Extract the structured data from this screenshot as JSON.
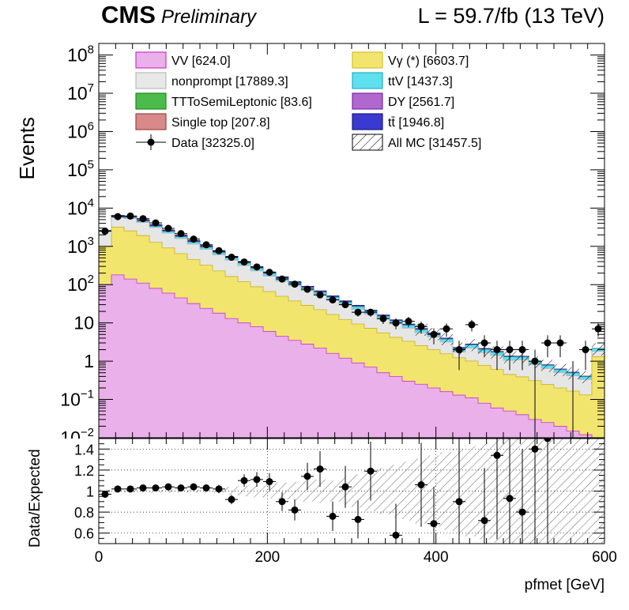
{
  "header": {
    "cms_label": "CMS",
    "prelim_label": "Preliminary",
    "lumi_label": "L = 59.7/fb (13 TeV)"
  },
  "legend": {
    "placement": "top",
    "entries": [
      {
        "key": "vv",
        "label": "VV [624.0]",
        "color": "#e9b0e9",
        "edge": "#cc33cc"
      },
      {
        "key": "vgamma",
        "label": "Vγ (*) [6603.7]",
        "color": "#f2e56e",
        "edge": "#d4c22a"
      },
      {
        "key": "nonprompt",
        "label": "nonprompt [17889.3]",
        "color": "#e8e8e8",
        "edge": "#bbbbbb"
      },
      {
        "key": "ttv",
        "label": "ttV [1437.3]",
        "color": "#5fe0ee",
        "edge": "#22b0c0"
      },
      {
        "key": "ttsemi",
        "label": "TTToSemiLeptonic [83.6]",
        "color": "#4cbb4c",
        "edge": "#1f8a1f"
      },
      {
        "key": "dy",
        "label": "DY [2561.7]",
        "color": "#b068d0",
        "edge": "#7a2aa0"
      },
      {
        "key": "singletop",
        "label": "Single top [207.8]",
        "color": "#d88a8a",
        "edge": "#a04040"
      },
      {
        "key": "tt",
        "label": "tt̄ [1946.8]",
        "color": "#3a3ad0",
        "edge": "#1a1a80"
      },
      {
        "key": "data",
        "label": "Data [32325.0]",
        "color": "#000000",
        "edge": "#000000"
      },
      {
        "key": "allmc",
        "label": "All MC [31457.5]",
        "color": "#ffffff",
        "edge": "#000000"
      }
    ]
  },
  "chart_data": [
    {
      "type": "area",
      "title": "",
      "ylabel": "Events",
      "xlabel": "",
      "y_scale": "log",
      "ylim": [
        0.01,
        200000000
      ],
      "xlim": [
        0,
        600
      ],
      "y_tick_labels": [
        "10^-1",
        "1",
        "10",
        "10^2",
        "10^3",
        "10^4",
        "10^5",
        "10^6",
        "10^7",
        "10^8"
      ],
      "bin_edges_step": 15,
      "stacked_series": [
        {
          "name": "VV",
          "values": [
            100,
            180,
            140,
            110,
            80,
            60,
            45,
            32,
            24,
            18,
            13,
            10,
            8,
            6,
            4.5,
            3.5,
            2.8,
            2.2,
            1.6,
            1.2,
            0.9,
            0.7,
            0.5,
            0.4,
            0.3,
            0.25,
            0.2,
            0.16,
            0.13,
            0.11,
            0.08,
            0.06,
            0.05,
            0.04,
            0.03,
            0.025,
            0.02,
            0.015,
            0.012,
            0.01
          ]
        },
        {
          "name": "Vγ (*)",
          "values": [
            900,
            3000,
            2400,
            1800,
            1200,
            850,
            600,
            420,
            300,
            210,
            150,
            110,
            80,
            60,
            45,
            34,
            26,
            20,
            15,
            11,
            8.5,
            6.5,
            5,
            3.8,
            3,
            2.3,
            1.8,
            1.4,
            1.1,
            0.9,
            0.7,
            0.55,
            0.4,
            0.35,
            0.28,
            0.22,
            0.18,
            0.15,
            0.12,
            1.3
          ]
        },
        {
          "name": "nonprompt",
          "values": [
            1400,
            2400,
            2800,
            2300,
            1800,
            1300,
            950,
            700,
            510,
            370,
            270,
            195,
            140,
            100,
            74,
            55,
            41,
            31,
            23,
            17,
            13,
            9.5,
            7,
            5.2,
            4,
            3,
            2.3,
            1.6,
            0.5,
            1.2,
            0.9,
            0.8,
            0.6,
            0.7,
            0.5,
            0.4,
            0.3,
            0.25,
            0.2,
            0.5
          ]
        },
        {
          "name": "ttV",
          "values": [
            60,
            240,
            320,
            300,
            260,
            220,
            180,
            140,
            110,
            85,
            65,
            50,
            38,
            29,
            22,
            17,
            13,
            10,
            7.5,
            5.5,
            4.2,
            3.2,
            2.4,
            1.8,
            1.4,
            1.1,
            0.8,
            0.6,
            0.35,
            0.45,
            0.35,
            0.3,
            0.25,
            0.2,
            0.16,
            0.13,
            0.1,
            0.08,
            0.06,
            0.35
          ]
        },
        {
          "name": "DY",
          "values": [
            100,
            380,
            300,
            200,
            140,
            95,
            65,
            45,
            32,
            23,
            16,
            12,
            8.5,
            6,
            4.3,
            3.1,
            2.3,
            1.7,
            1.2,
            0.9,
            0.65,
            0.5,
            0.37,
            0.27,
            0.2,
            0.15,
            0.11,
            0.08,
            0.06,
            0.05,
            0.04,
            0.03,
            0.02,
            0.02,
            0.015,
            0.012,
            0.01,
            0.008,
            0.006,
            0.005
          ]
        },
        {
          "name": "tt̄",
          "values": [
            50,
            250,
            260,
            230,
            190,
            150,
            115,
            85,
            63,
            46,
            34,
            25,
            18,
            13,
            9.5,
            7,
            5.2,
            3.8,
            2.8,
            2.1,
            1.5,
            1.1,
            0.8,
            0.6,
            0.45,
            0.33,
            0.25,
            0.18,
            0.14,
            0.1,
            0.08,
            0.06,
            0.04,
            0.03,
            0.025,
            0.02,
            0.015,
            0.012,
            0.01,
            0.008
          ]
        }
      ],
      "data_points": {
        "name": "Data",
        "x": [
          7.5,
          22.5,
          37.5,
          52.5,
          67.5,
          82.5,
          97.5,
          112.5,
          127.5,
          142.5,
          157.5,
          172.5,
          187.5,
          202.5,
          217.5,
          232.5,
          247.5,
          262.5,
          277.5,
          292.5,
          307.5,
          322.5,
          337.5,
          352.5,
          367.5,
          382.5,
          397.5,
          412.5,
          427.5,
          442.5,
          457.5,
          472.5,
          487.5,
          502.5,
          517.5,
          532.5,
          547.5,
          562.5,
          577.5,
          592.5
        ],
        "y": [
          2500,
          6000,
          6200,
          5300,
          4100,
          2950,
          2150,
          1550,
          1100,
          770,
          520,
          390,
          290,
          210,
          140,
          103,
          76,
          54,
          40,
          30,
          19,
          19,
          13,
          10,
          11,
          8,
          5,
          7,
          2,
          9,
          3,
          2,
          2,
          2,
          1,
          3,
          3,
          0.008,
          2,
          7
        ]
      }
    },
    {
      "type": "scatter",
      "title": "",
      "ylabel": "Data/Expected",
      "xlabel": "pfmet [GeV]",
      "xlim": [
        0,
        600
      ],
      "ylim": [
        0.5,
        1.5
      ],
      "x_tick_labels": [
        "0",
        "200",
        "400",
        "600"
      ],
      "y_tick_labels": [
        "0.6",
        "0.8",
        "1",
        "1.2",
        "1.4"
      ],
      "grid": true,
      "ratio_points": {
        "x": [
          7.5,
          22.5,
          37.5,
          52.5,
          67.5,
          82.5,
          97.5,
          112.5,
          127.5,
          142.5,
          157.5,
          172.5,
          187.5,
          202.5,
          217.5,
          232.5,
          247.5,
          262.5,
          277.5,
          292.5,
          307.5,
          322.5,
          352.5,
          382.5,
          397.5,
          427.5,
          457.5,
          472.5,
          487.5,
          502.5,
          517.5,
          532.5
        ],
        "y": [
          0.97,
          1.02,
          1.02,
          1.03,
          1.03,
          1.04,
          1.03,
          1.04,
          1.03,
          1.02,
          0.92,
          1.1,
          1.11,
          1.09,
          0.9,
          0.82,
          1.14,
          1.21,
          0.76,
          1.04,
          0.73,
          1.19,
          0.58,
          1.06,
          0.69,
          0.9,
          0.72,
          1.34,
          0.93,
          0.8,
          1.4,
          1.5
        ],
        "err": [
          0.02,
          0.015,
          0.015,
          0.015,
          0.015,
          0.02,
          0.02,
          0.025,
          0.03,
          0.04,
          0.045,
          0.06,
          0.07,
          0.08,
          0.09,
          0.1,
          0.13,
          0.17,
          0.14,
          0.2,
          0.18,
          0.28,
          0.3,
          0.4,
          0.35,
          0.6,
          0.5,
          0.8,
          0.7,
          0.6,
          1.0,
          1.0
        ]
      }
    }
  ]
}
